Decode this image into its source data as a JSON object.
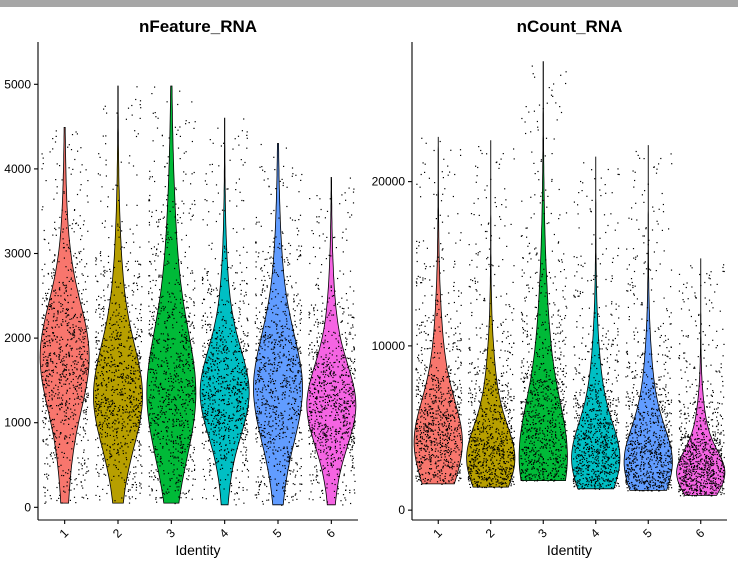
{
  "chart_data": [
    {
      "type": "violin",
      "title": "nFeature_RNA",
      "xlabel": "Identity",
      "ylabel": "",
      "categories": [
        "1",
        "2",
        "3",
        "4",
        "5",
        "6"
      ],
      "yticks": [
        0,
        1000,
        2000,
        3000,
        4000,
        5000
      ],
      "ylim": [
        -150,
        5500
      ],
      "colors": [
        "#F8766D",
        "#B79F00",
        "#00BA38",
        "#00BFC4",
        "#619CFF",
        "#F564E3"
      ],
      "series": [
        {
          "category": "1",
          "min": 50,
          "max": 4490,
          "median": 1600,
          "q1": 1150,
          "q3": 2200,
          "mode": 1800
        },
        {
          "category": "2",
          "min": 50,
          "max": 4980,
          "median": 1450,
          "q1": 1000,
          "q3": 2000,
          "mode": 1300
        },
        {
          "category": "3",
          "min": 50,
          "max": 4980,
          "median": 1700,
          "q1": 1150,
          "q3": 2400,
          "mode": 1300
        },
        {
          "category": "4",
          "min": 30,
          "max": 4600,
          "median": 1400,
          "q1": 1050,
          "q3": 1900,
          "mode": 1350
        },
        {
          "category": "5",
          "min": 30,
          "max": 4300,
          "median": 1450,
          "q1": 950,
          "q3": 2000,
          "mode": 1400
        },
        {
          "category": "6",
          "min": 30,
          "max": 3900,
          "median": 1250,
          "q1": 850,
          "q3": 1650,
          "mode": 1200
        }
      ]
    },
    {
      "type": "violin",
      "title": "nCount_RNA",
      "xlabel": "Identity",
      "ylabel": "",
      "categories": [
        "1",
        "2",
        "3",
        "4",
        "5",
        "6"
      ],
      "yticks": [
        0,
        10000,
        20000
      ],
      "ylim": [
        -600,
        28500
      ],
      "colors": [
        "#F8766D",
        "#B79F00",
        "#00BA38",
        "#00BFC4",
        "#619CFF",
        "#F564E3"
      ],
      "series": [
        {
          "category": "1",
          "min": 1600,
          "max": 22700,
          "median": 5000,
          "q1": 3200,
          "q3": 7500,
          "mode": 4000
        },
        {
          "category": "2",
          "min": 1400,
          "max": 22500,
          "median": 4200,
          "q1": 2800,
          "q3": 6200,
          "mode": 3000
        },
        {
          "category": "3",
          "min": 1800,
          "max": 27300,
          "median": 5200,
          "q1": 3300,
          "q3": 9000,
          "mode": 3000
        },
        {
          "category": "4",
          "min": 1300,
          "max": 21500,
          "median": 4200,
          "q1": 2800,
          "q3": 6500,
          "mode": 3000
        },
        {
          "category": "5",
          "min": 1200,
          "max": 22200,
          "median": 3800,
          "q1": 2400,
          "q3": 6000,
          "mode": 2800
        },
        {
          "category": "6",
          "min": 900,
          "max": 15300,
          "median": 2800,
          "q1": 1900,
          "q3": 4200,
          "mode": 2200
        }
      ]
    }
  ]
}
